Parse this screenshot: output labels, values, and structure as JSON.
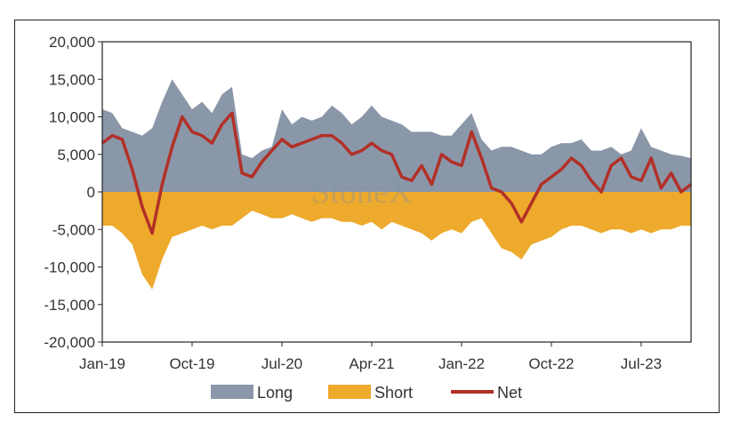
{
  "chart_data": {
    "type": "area",
    "title": "",
    "xlabel": "",
    "ylabel": "",
    "ylim": [
      -20000,
      20000
    ],
    "yticks": [
      20000,
      15000,
      10000,
      5000,
      0,
      -5000,
      -10000,
      -15000,
      -20000
    ],
    "ytick_labels": [
      "20,000",
      "15,000",
      "10,000",
      "5,000",
      "0",
      "-5,000",
      "-10,000",
      "-15,000",
      "-20,000"
    ],
    "xlim": [
      "2019-01",
      "2023-12"
    ],
    "xtick_labels": [
      "Jan-19",
      "Oct-19",
      "Jul-20",
      "Apr-21",
      "Jan-22",
      "Oct-22",
      "Jul-23"
    ],
    "x": [
      "2019-01",
      "2019-02",
      "2019-03",
      "2019-04",
      "2019-05",
      "2019-06",
      "2019-07",
      "2019-08",
      "2019-09",
      "2019-10",
      "2019-11",
      "2019-12",
      "2020-01",
      "2020-02",
      "2020-03",
      "2020-04",
      "2020-05",
      "2020-06",
      "2020-07",
      "2020-08",
      "2020-09",
      "2020-10",
      "2020-11",
      "2020-12",
      "2021-01",
      "2021-02",
      "2021-03",
      "2021-04",
      "2021-05",
      "2021-06",
      "2021-07",
      "2021-08",
      "2021-09",
      "2021-10",
      "2021-11",
      "2021-12",
      "2022-01",
      "2022-02",
      "2022-03",
      "2022-04",
      "2022-05",
      "2022-06",
      "2022-07",
      "2022-08",
      "2022-09",
      "2022-10",
      "2022-11",
      "2022-12",
      "2023-01",
      "2023-02",
      "2023-03",
      "2023-04",
      "2023-05",
      "2023-06",
      "2023-07",
      "2023-08",
      "2023-09",
      "2023-10",
      "2023-11",
      "2023-12"
    ],
    "series": [
      {
        "name": "Long",
        "type": "area",
        "color": "#8a97a9",
        "values": [
          11000,
          10500,
          8500,
          8000,
          7500,
          8500,
          12000,
          15000,
          13000,
          11000,
          12000,
          10500,
          13000,
          14000,
          5000,
          4500,
          5500,
          6000,
          11000,
          9000,
          10000,
          9500,
          10000,
          11500,
          10500,
          9000,
          10000,
          11500,
          10000,
          9500,
          9000,
          8000,
          8000,
          8000,
          7500,
          7500,
          9000,
          10500,
          7000,
          5500,
          6000,
          6000,
          5500,
          5000,
          5000,
          6000,
          6500,
          6500,
          7000,
          5500,
          5500,
          6000,
          5000,
          5500,
          8500,
          6000,
          5500,
          5000,
          4800,
          4500
        ]
      },
      {
        "name": "Short",
        "type": "area",
        "color": "#edaa2c",
        "values": [
          -4500,
          -4500,
          -5500,
          -7000,
          -11000,
          -13000,
          -9000,
          -6000,
          -5500,
          -5000,
          -4500,
          -5000,
          -4500,
          -4500,
          -3500,
          -2500,
          -3000,
          -3500,
          -3500,
          -3000,
          -3500,
          -4000,
          -3500,
          -3500,
          -4000,
          -4000,
          -4500,
          -4000,
          -5000,
          -4000,
          -4500,
          -5000,
          -5500,
          -6500,
          -5500,
          -5000,
          -5500,
          -4000,
          -3500,
          -5500,
          -7500,
          -8000,
          -9000,
          -7000,
          -6500,
          -6000,
          -5000,
          -4500,
          -4500,
          -5000,
          -5500,
          -5000,
          -5000,
          -5500,
          -5000,
          -5500,
          -5000,
          -5000,
          -4500,
          -4500
        ]
      },
      {
        "name": "Net",
        "type": "line",
        "color": "#b23027",
        "values": [
          6500,
          7500,
          7000,
          3000,
          -2000,
          -5500,
          1000,
          6000,
          10000,
          8000,
          7500,
          6500,
          9000,
          10500,
          2500,
          2000,
          4000,
          5500,
          7000,
          6000,
          6500,
          7000,
          7500,
          7500,
          6500,
          5000,
          5500,
          6500,
          5500,
          5000,
          2000,
          1500,
          3500,
          1000,
          5000,
          4000,
          3500,
          8000,
          4500,
          500,
          0,
          -1500,
          -4000,
          -1500,
          1000,
          2000,
          3000,
          4500,
          3500,
          1500,
          0,
          3500,
          4500,
          2000,
          1500,
          4500,
          500,
          2500,
          0,
          1000
        ]
      }
    ],
    "legend": [
      "Long",
      "Short",
      "Net"
    ],
    "legend_placement": "bottom",
    "grid": false,
    "watermark": "StoneX"
  }
}
